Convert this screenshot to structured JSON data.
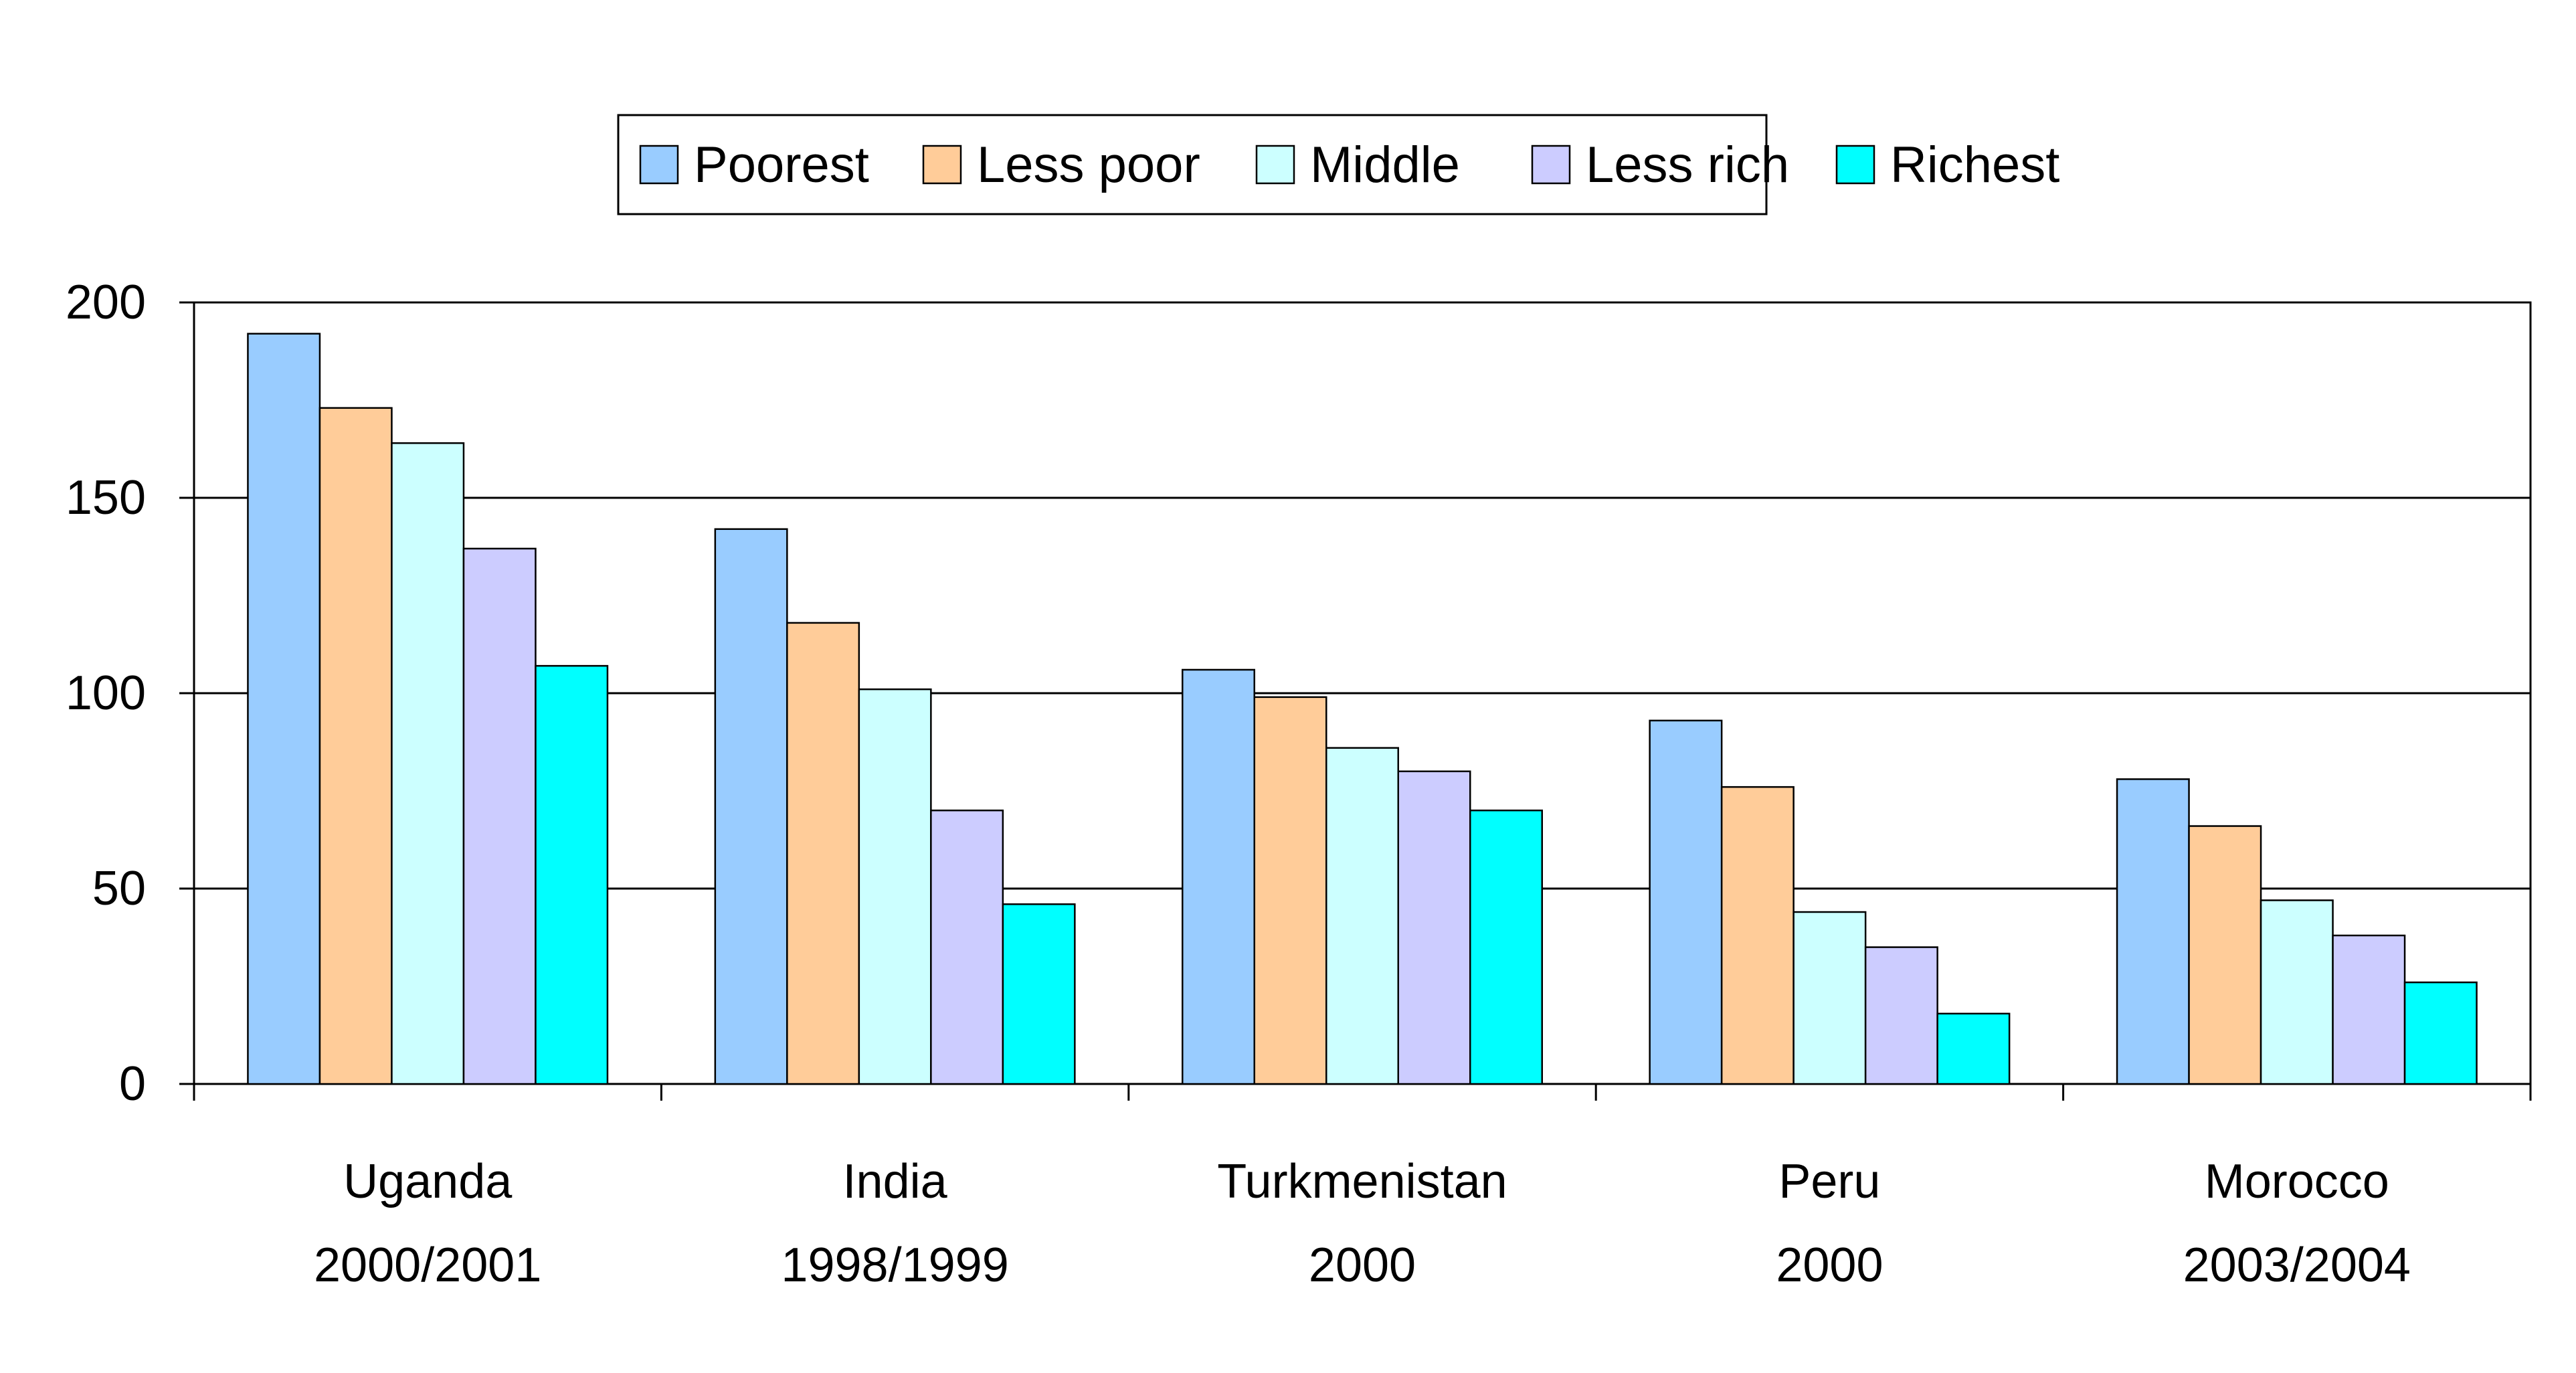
{
  "chart_data": {
    "type": "bar",
    "title": "",
    "xlabel": "",
    "ylabel": "",
    "ylim": [
      0,
      200
    ],
    "yticks": [
      "0",
      "50",
      "100",
      "150",
      "200"
    ],
    "grid": true,
    "legend_position": "top-center",
    "categories": [
      {
        "line1": "Uganda",
        "line2": "2000/2001"
      },
      {
        "line1": "India",
        "line2": "1998/1999"
      },
      {
        "line1": "Turkmenistan",
        "line2": "2000"
      },
      {
        "line1": "Peru",
        "line2": "2000"
      },
      {
        "line1": "Morocco",
        "line2": "2003/2004"
      }
    ],
    "series": [
      {
        "name": "Poorest",
        "color": "#99ccff",
        "values": [
          192,
          142,
          106,
          93,
          78
        ]
      },
      {
        "name": "Less poor",
        "color": "#ffcc99",
        "values": [
          173,
          118,
          99,
          76,
          66
        ]
      },
      {
        "name": "Middle",
        "color": "#ccffff",
        "values": [
          164,
          101,
          86,
          44,
          47
        ]
      },
      {
        "name": "Less rich",
        "color": "#ccccff",
        "values": [
          137,
          70,
          80,
          35,
          38
        ]
      },
      {
        "name": "Richest",
        "color": "#00ffff",
        "values": [
          107,
          46,
          70,
          18,
          26
        ]
      }
    ]
  }
}
